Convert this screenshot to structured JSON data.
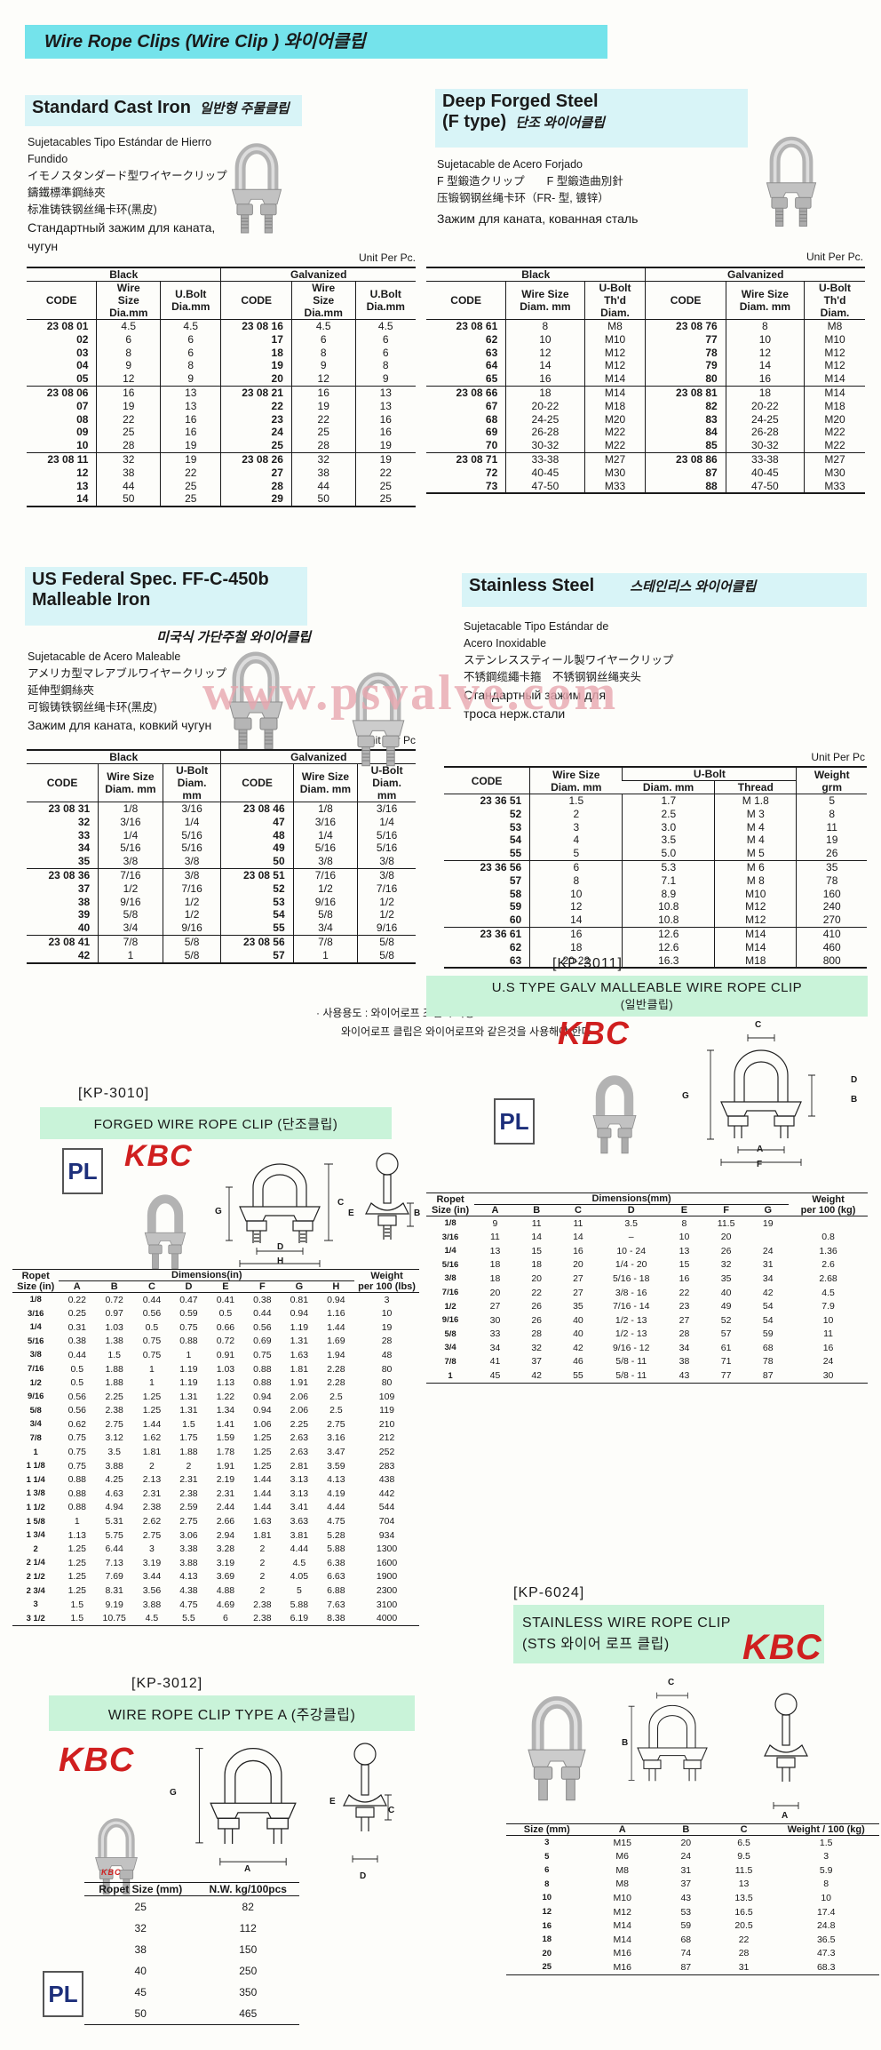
{
  "page": {
    "title": "Wire Rope Clips  (Wire Clip ) 와이어클립",
    "watermark": "www.psvalve.com"
  },
  "logos": {
    "kbc": "KBC",
    "pl": "PL"
  },
  "cast_iron": {
    "title": "Standard Cast Iron",
    "title_ko": "일반형 주물클립",
    "desc": [
      "Sujetacables Tipo Estándar de Hierro Fundido",
      "イモノスタンダード型ワイヤークリップ",
      "鑄鐵標準鋼絲夾",
      "标准铸铁钢丝绳卡环(黑皮)",
      "Стандартный зажим для каната,",
      "чугун"
    ],
    "unit": "Unit Per Pc.",
    "g1": "Black",
    "g2": "Galvanized",
    "h_code": "CODE",
    "h_wire": "Wire\nSize\nDia.mm",
    "h_bolt": "U.Bolt\nDia.mm",
    "breaks": [
      5,
      10
    ],
    "rows": [
      [
        "23 08 01",
        "4.5",
        "4.5",
        "23 08 16",
        "4.5",
        "4.5"
      ],
      [
        "02",
        "6",
        "6",
        "17",
        "6",
        "6"
      ],
      [
        "03",
        "8",
        "6",
        "18",
        "8",
        "6"
      ],
      [
        "04",
        "9",
        "8",
        "19",
        "9",
        "8"
      ],
      [
        "05",
        "12",
        "9",
        "20",
        "12",
        "9"
      ],
      [
        "23 08 06",
        "16",
        "13",
        "23 08 21",
        "16",
        "13"
      ],
      [
        "07",
        "19",
        "13",
        "22",
        "19",
        "13"
      ],
      [
        "08",
        "22",
        "16",
        "23",
        "22",
        "16"
      ],
      [
        "09",
        "25",
        "16",
        "24",
        "25",
        "16"
      ],
      [
        "10",
        "28",
        "19",
        "25",
        "28",
        "19"
      ],
      [
        "23 08 11",
        "32",
        "19",
        "23 08 26",
        "32",
        "19"
      ],
      [
        "12",
        "38",
        "22",
        "27",
        "38",
        "22"
      ],
      [
        "13",
        "44",
        "25",
        "28",
        "44",
        "25"
      ],
      [
        "14",
        "50",
        "25",
        "29",
        "50",
        "25"
      ]
    ]
  },
  "deep_forged": {
    "title": "Deep Forged Steel",
    "title2": "(F type)",
    "title_ko": "단조 와이어클립",
    "desc": [
      "Sujetacable de Acero Forjado",
      "F 型鍛造クリップ　　F 型鍛造曲別針",
      "压锻钢钢丝绳卡环（FR- 型, 镀锌）",
      "Зажим для каната, кованная сталь"
    ],
    "unit": "Unit Per Pc.",
    "g1": "Black",
    "g2": "Galvanized",
    "h_code": "CODE",
    "h_wire": "Wire Size\nDiam. mm",
    "h_bolt": "U-Bolt\nTh'd\nDiam.",
    "breaks": [
      5,
      10
    ],
    "rows": [
      [
        "23 08 61",
        "8",
        "M8",
        "23 08 76",
        "8",
        "M8"
      ],
      [
        "62",
        "10",
        "M10",
        "77",
        "10",
        "M10"
      ],
      [
        "63",
        "12",
        "M12",
        "78",
        "12",
        "M12"
      ],
      [
        "64",
        "14",
        "M12",
        "79",
        "14",
        "M12"
      ],
      [
        "65",
        "16",
        "M14",
        "80",
        "16",
        "M14"
      ],
      [
        "23 08 66",
        "18",
        "M14",
        "23 08 81",
        "18",
        "M14"
      ],
      [
        "67",
        "20-22",
        "M18",
        "82",
        "20-22",
        "M18"
      ],
      [
        "68",
        "24-25",
        "M20",
        "83",
        "24-25",
        "M20"
      ],
      [
        "69",
        "26-28",
        "M22",
        "84",
        "26-28",
        "M22"
      ],
      [
        "70",
        "30-32",
        "M22",
        "85",
        "30-32",
        "M22"
      ],
      [
        "23 08 71",
        "33-38",
        "M27",
        "23 08 86",
        "33-38",
        "M27"
      ],
      [
        "72",
        "40-45",
        "M30",
        "87",
        "40-45",
        "M30"
      ],
      [
        "73",
        "47-50",
        "M33",
        "88",
        "47-50",
        "M33"
      ]
    ]
  },
  "us_federal": {
    "title": "US Federal Spec. FF-C-450b",
    "title2": "Malleable Iron",
    "title_ko": "미국식 가단주철 와이어클립",
    "desc": [
      "Sujetacable de Acero Maleable",
      "アメリカ型マレアブルワイヤークリップ",
      "延伸型鋼絲夾",
      "可锻铸铁钢丝绳卡环(黑皮)",
      "Зажим для каната, ковкий чугун"
    ],
    "unit": "Unit Per Pc",
    "g1": "Black",
    "g2": "Galvanized",
    "h_code": "CODE",
    "h_wire": "Wire Size\nDiam. mm",
    "h_bolt": "U-Bolt\nDiam.\nmm",
    "breaks": [
      5,
      10
    ],
    "rows": [
      [
        "23 08 31",
        "1/8",
        "3/16",
        "23 08 46",
        "1/8",
        "3/16"
      ],
      [
        "32",
        "3/16",
        "1/4",
        "47",
        "3/16",
        "1/4"
      ],
      [
        "33",
        "1/4",
        "5/16",
        "48",
        "1/4",
        "5/16"
      ],
      [
        "34",
        "5/16",
        "5/16",
        "49",
        "5/16",
        "5/16"
      ],
      [
        "35",
        "3/8",
        "3/8",
        "50",
        "3/8",
        "3/8"
      ],
      [
        "23 08 36",
        "7/16",
        "3/8",
        "23 08 51",
        "7/16",
        "3/8"
      ],
      [
        "37",
        "1/2",
        "7/16",
        "52",
        "1/2",
        "7/16"
      ],
      [
        "38",
        "9/16",
        "1/2",
        "53",
        "9/16",
        "1/2"
      ],
      [
        "39",
        "5/8",
        "1/2",
        "54",
        "5/8",
        "1/2"
      ],
      [
        "40",
        "3/4",
        "9/16",
        "55",
        "3/4",
        "9/16"
      ],
      [
        "23 08 41",
        "7/8",
        "5/8",
        "23 08 56",
        "7/8",
        "5/8"
      ],
      [
        "42",
        "1",
        "5/8",
        "57",
        "1",
        "5/8"
      ]
    ]
  },
  "stainless": {
    "title": "Stainless Steel",
    "title_ko": "스테인리스 와이어클립",
    "desc": [
      "Sujetacable Tipo Estándar de",
      "Acero Inoxidable",
      "ステンレススティール製ワイヤークリップ",
      "不锈鋼缆繩卡箍　不锈钢钢丝绳夹头",
      "Стандартный зажим для",
      "троса нерж.стали"
    ],
    "unit": "Unit Per Pc",
    "h_code": "CODE",
    "h_wire": "Wire Size\nDiam. mm",
    "h_ubolt": "U-Bolt",
    "h_diam": "Diam. mm",
    "h_thread": "Thread",
    "h_weight": "Weight\ngrm",
    "breaks": [
      5,
      10
    ],
    "rows": [
      [
        "23 36 51",
        "1.5",
        "1.7",
        "M 1.8",
        "5"
      ],
      [
        "52",
        "2",
        "2.5",
        "M 3",
        "8"
      ],
      [
        "53",
        "3",
        "3.0",
        "M 4",
        "11"
      ],
      [
        "54",
        "4",
        "3.5",
        "M 4",
        "19"
      ],
      [
        "55",
        "5",
        "5.0",
        "M 5",
        "26"
      ],
      [
        "23 36 56",
        "6",
        "5.3",
        "M 6",
        "35"
      ],
      [
        "57",
        "8",
        "7.1",
        "M 8",
        "78"
      ],
      [
        "58",
        "10",
        "8.9",
        "M10",
        "160"
      ],
      [
        "59",
        "12",
        "10.8",
        "M12",
        "240"
      ],
      [
        "60",
        "14",
        "10.8",
        "M12",
        "270"
      ],
      [
        "23 36 61",
        "16",
        "12.6",
        "M14",
        "410"
      ],
      [
        "62",
        "18",
        "12.6",
        "M14",
        "460"
      ],
      [
        "63",
        "20-22",
        "16.3",
        "M18",
        "800"
      ]
    ],
    "notes": [
      "· 사용용도 : 와이어로프 조립시 사용",
      "와이어로프 클립은 와이어로프와 같은것을 사용해야 한다"
    ]
  },
  "kp3010": {
    "label": "[KP-3010]",
    "title": "FORGED WIRE ROPE CLIP (단조클립)",
    "h_size": "Ropet\nSize (in)",
    "h_dims": "Dimensions(in)",
    "dims": [
      "A",
      "B",
      "C",
      "D",
      "E",
      "F",
      "G",
      "H"
    ],
    "h_weight": "Weight\nper 100 (lbs)",
    "dlabels": [
      "G",
      "C",
      "D",
      "H",
      "E",
      "B"
    ],
    "rows": [
      [
        "1/8",
        "0.22",
        "0.72",
        "0.44",
        "0.47",
        "0.41",
        "0.38",
        "0.81",
        "0.94",
        "3"
      ],
      [
        "3/16",
        "0.25",
        "0.97",
        "0.56",
        "0.59",
        "0.5",
        "0.44",
        "0.94",
        "1.16",
        "10"
      ],
      [
        "1/4",
        "0.31",
        "1.03",
        "0.5",
        "0.75",
        "0.66",
        "0.56",
        "1.19",
        "1.44",
        "19"
      ],
      [
        "5/16",
        "0.38",
        "1.38",
        "0.75",
        "0.88",
        "0.72",
        "0.69",
        "1.31",
        "1.69",
        "28"
      ],
      [
        "3/8",
        "0.44",
        "1.5",
        "0.75",
        "1",
        "0.91",
        "0.75",
        "1.63",
        "1.94",
        "48"
      ],
      [
        "7/16",
        "0.5",
        "1.88",
        "1",
        "1.19",
        "1.03",
        "0.88",
        "1.81",
        "2.28",
        "80"
      ],
      [
        "1/2",
        "0.5",
        "1.88",
        "1",
        "1.19",
        "1.13",
        "0.88",
        "1.91",
        "2.28",
        "80"
      ],
      [
        "9/16",
        "0.56",
        "2.25",
        "1.25",
        "1.31",
        "1.22",
        "0.94",
        "2.06",
        "2.5",
        "109"
      ],
      [
        "5/8",
        "0.56",
        "2.38",
        "1.25",
        "1.31",
        "1.34",
        "0.94",
        "2.06",
        "2.5",
        "119"
      ],
      [
        "3/4",
        "0.62",
        "2.75",
        "1.44",
        "1.5",
        "1.41",
        "1.06",
        "2.25",
        "2.75",
        "210"
      ],
      [
        "7/8",
        "0.75",
        "3.12",
        "1.62",
        "1.75",
        "1.59",
        "1.25",
        "2.63",
        "3.16",
        "212"
      ],
      [
        "1",
        "0.75",
        "3.5",
        "1.81",
        "1.88",
        "1.78",
        "1.25",
        "2.63",
        "3.47",
        "252"
      ],
      [
        "1 1/8",
        "0.75",
        "3.88",
        "2",
        "2",
        "1.91",
        "1.25",
        "2.81",
        "3.59",
        "283"
      ],
      [
        "1 1/4",
        "0.88",
        "4.25",
        "2.13",
        "2.31",
        "2.19",
        "1.44",
        "3.13",
        "4.13",
        "438"
      ],
      [
        "1 3/8",
        "0.88",
        "4.63",
        "2.31",
        "2.38",
        "2.31",
        "1.44",
        "3.13",
        "4.19",
        "442"
      ],
      [
        "1 1/2",
        "0.88",
        "4.94",
        "2.38",
        "2.59",
        "2.44",
        "1.44",
        "3.41",
        "4.44",
        "544"
      ],
      [
        "1 5/8",
        "1",
        "5.31",
        "2.62",
        "2.75",
        "2.66",
        "1.63",
        "3.63",
        "4.75",
        "704"
      ],
      [
        "1 3/4",
        "1.13",
        "5.75",
        "2.75",
        "3.06",
        "2.94",
        "1.81",
        "3.81",
        "5.28",
        "934"
      ],
      [
        "2",
        "1.25",
        "6.44",
        "3",
        "3.38",
        "3.28",
        "2",
        "4.44",
        "5.88",
        "1300"
      ],
      [
        "2 1/4",
        "1.25",
        "7.13",
        "3.19",
        "3.88",
        "3.19",
        "2",
        "4.5",
        "6.38",
        "1600"
      ],
      [
        "2 1/2",
        "1.25",
        "7.69",
        "3.44",
        "4.13",
        "3.69",
        "2",
        "4.05",
        "6.63",
        "1900"
      ],
      [
        "2 3/4",
        "1.25",
        "8.31",
        "3.56",
        "4.38",
        "4.88",
        "2",
        "5",
        "6.88",
        "2300"
      ],
      [
        "3",
        "1.5",
        "9.19",
        "3.88",
        "4.75",
        "4.69",
        "2.38",
        "5.88",
        "7.63",
        "3100"
      ],
      [
        "3 1/2",
        "1.5",
        "10.75",
        "4.5",
        "5.5",
        "6",
        "2.38",
        "6.19",
        "8.38",
        "4000"
      ]
    ]
  },
  "kp3011": {
    "label": "[KP-3011]",
    "title": "U.S TYPE GALV MALLEABLE WIRE ROPE CLIP",
    "title_ko": "(일반클립)",
    "h_size": "Ropet\nSize (in)",
    "h_dims": "Dimensions(mm)",
    "dims": [
      "A",
      "B",
      "C",
      "D",
      "E",
      "F",
      "G"
    ],
    "h_weight": "Weight\nper 100 (kg)",
    "dlabels": [
      "C",
      "G",
      "D",
      "B",
      "A",
      "F"
    ],
    "rows": [
      [
        "1/8",
        "9",
        "11",
        "11",
        "3.5",
        "8",
        "11.5",
        "19",
        ""
      ],
      [
        "3/16",
        "11",
        "14",
        "14",
        "–",
        "10",
        "20",
        "",
        "0.8"
      ],
      [
        "1/4",
        "13",
        "15",
        "16",
        "10 - 24",
        "13",
        "26",
        "24",
        "1.36"
      ],
      [
        "5/16",
        "18",
        "18",
        "20",
        "1/4 - 20",
        "15",
        "32",
        "31",
        "2.6"
      ],
      [
        "3/8",
        "18",
        "20",
        "27",
        "5/16 - 18",
        "16",
        "35",
        "34",
        "2.68"
      ],
      [
        "7/16",
        "20",
        "22",
        "27",
        "3/8 - 16",
        "22",
        "40",
        "42",
        "4.5"
      ],
      [
        "1/2",
        "27",
        "26",
        "35",
        "7/16 - 14",
        "23",
        "49",
        "54",
        "7.9"
      ],
      [
        "9/16",
        "30",
        "26",
        "40",
        "1/2 - 13",
        "27",
        "52",
        "54",
        "10"
      ],
      [
        "5/8",
        "33",
        "28",
        "40",
        "1/2 - 13",
        "28",
        "57",
        "59",
        "11"
      ],
      [
        "3/4",
        "34",
        "32",
        "42",
        "9/16 - 12",
        "34",
        "61",
        "68",
        "16"
      ],
      [
        "7/8",
        "41",
        "37",
        "46",
        "5/8 - 11",
        "38",
        "71",
        "78",
        "24"
      ],
      [
        "1",
        "45",
        "42",
        "55",
        "5/8 - 11",
        "43",
        "77",
        "87",
        "30"
      ]
    ]
  },
  "kp6024": {
    "label": "[KP-6024]",
    "title": "STAINLESS WIRE ROPE CLIP",
    "title2": "(STS 와이어 로프 클립)",
    "headers": [
      "Size (mm)",
      "A",
      "B",
      "C",
      "Weight / 100 (kg)"
    ],
    "dlabels": [
      "C",
      "B",
      "A"
    ],
    "rows": [
      [
        "3",
        "M15",
        "20",
        "6.5",
        "1.5"
      ],
      [
        "5",
        "M6",
        "24",
        "9.5",
        "3"
      ],
      [
        "6",
        "M8",
        "31",
        "11.5",
        "5.9"
      ],
      [
        "8",
        "M8",
        "37",
        "13",
        "8"
      ],
      [
        "10",
        "M10",
        "43",
        "13.5",
        "10"
      ],
      [
        "12",
        "M12",
        "53",
        "16.5",
        "17.4"
      ],
      [
        "16",
        "M14",
        "59",
        "20.5",
        "24.8"
      ],
      [
        "18",
        "M14",
        "68",
        "22",
        "36.5"
      ],
      [
        "20",
        "M16",
        "74",
        "28",
        "47.3"
      ],
      [
        "25",
        "M16",
        "87",
        "31",
        "68.3"
      ]
    ]
  },
  "kp3012": {
    "label": "[KP-3012]",
    "title": "WIRE ROPE CLIP TYPE A (주강클립)",
    "h_size": "Ropet Size (mm)",
    "h_weight": "N.W. kg/100pcs",
    "dlabels": [
      "G",
      "E",
      "C",
      "A",
      "D"
    ],
    "rows": [
      [
        "25",
        "82"
      ],
      [
        "32",
        "112"
      ],
      [
        "38",
        "150"
      ],
      [
        "40",
        "250"
      ],
      [
        "45",
        "350"
      ],
      [
        "50",
        "465"
      ]
    ]
  }
}
